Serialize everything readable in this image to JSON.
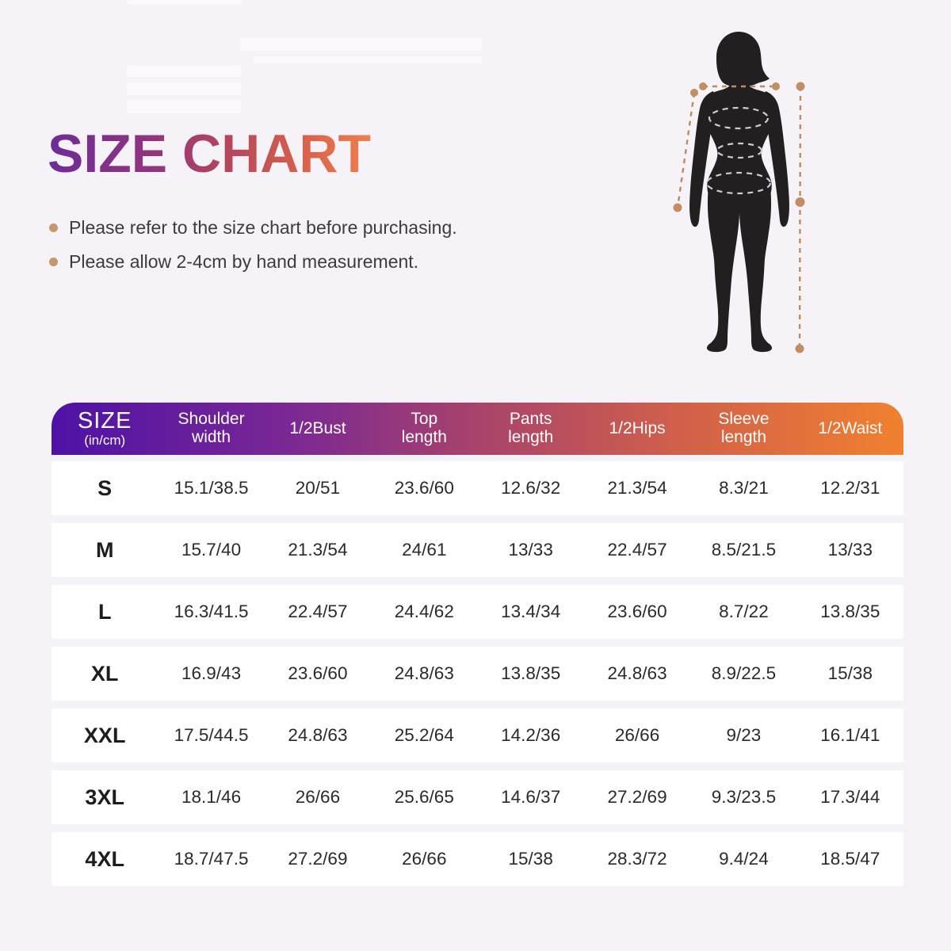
{
  "title": "SIZE CHART",
  "notes": [
    "Please refer to the size chart before purchasing.",
    "Please allow 2-4cm by hand measurement."
  ],
  "figure": {
    "description": "black female body silhouette with dashed tan measurement guide lines and dashed ellipses at bust, waist and hips"
  },
  "table": {
    "columns": [
      {
        "lines": [
          "SIZE"
        ],
        "sub": "(in/cm)"
      },
      {
        "lines": [
          "Shoulder",
          "width"
        ]
      },
      {
        "lines": [
          "1/2Bust"
        ]
      },
      {
        "lines": [
          "Top",
          "length"
        ]
      },
      {
        "lines": [
          "Pants",
          "length"
        ]
      },
      {
        "lines": [
          "1/2Hips"
        ]
      },
      {
        "lines": [
          "Sleeve",
          "length"
        ]
      },
      {
        "lines": [
          "1/2Waist"
        ]
      }
    ],
    "rows": [
      {
        "size": "S",
        "cells": [
          "15.1/38.5",
          "20/51",
          "23.6/60",
          "12.6/32",
          "21.3/54",
          "8.3/21",
          "12.2/31"
        ]
      },
      {
        "size": "M",
        "cells": [
          "15.7/40",
          "21.3/54",
          "24/61",
          "13/33",
          "22.4/57",
          "8.5/21.5",
          "13/33"
        ]
      },
      {
        "size": "L",
        "cells": [
          "16.3/41.5",
          "22.4/57",
          "24.4/62",
          "13.4/34",
          "23.6/60",
          "8.7/22",
          "13.8/35"
        ]
      },
      {
        "size": "XL",
        "cells": [
          "16.9/43",
          "23.6/60",
          "24.8/63",
          "13.8/35",
          "24.8/63",
          "8.9/22.5",
          "15/38"
        ]
      },
      {
        "size": "XXL",
        "cells": [
          "17.5/44.5",
          "24.8/63",
          "25.2/64",
          "14.2/36",
          "26/66",
          "9/23",
          "16.1/41"
        ]
      },
      {
        "size": "3XL",
        "cells": [
          "18.1/46",
          "26/66",
          "25.6/65",
          "14.6/37",
          "27.2/69",
          "9.3/23.5",
          "17.3/44"
        ]
      },
      {
        "size": "4XL",
        "cells": [
          "18.7/47.5",
          "27.2/69",
          "26/66",
          "15/38",
          "28.3/72",
          "9.4/24",
          "18.5/47"
        ]
      }
    ]
  },
  "colors": {
    "background": "#f5f2f8",
    "title_gradient": [
      "#6d2c97",
      "#b3465c",
      "#ee7f4e"
    ],
    "header_gradient": [
      "#4e12a6",
      "#a8436b",
      "#f0812f"
    ],
    "bullet_dot": "#c7986b",
    "row_background": "#ffffff",
    "text": "#2a2a2a",
    "silhouette": "#221f20",
    "measure_line": "#c18a5d"
  },
  "chart_data": {
    "type": "table",
    "title": "SIZE CHART",
    "unit": "in/cm",
    "columns": [
      "SIZE (in/cm)",
      "Shoulder width",
      "1/2Bust",
      "Top length",
      "Pants length",
      "1/2Hips",
      "Sleeve length",
      "1/2Waist"
    ],
    "rows": [
      [
        "S",
        "15.1/38.5",
        "20/51",
        "23.6/60",
        "12.6/32",
        "21.3/54",
        "8.3/21",
        "12.2/31"
      ],
      [
        "M",
        "15.7/40",
        "21.3/54",
        "24/61",
        "13/33",
        "22.4/57",
        "8.5/21.5",
        "13/33"
      ],
      [
        "L",
        "16.3/41.5",
        "22.4/57",
        "24.4/62",
        "13.4/34",
        "23.6/60",
        "8.7/22",
        "13.8/35"
      ],
      [
        "XL",
        "16.9/43",
        "23.6/60",
        "24.8/63",
        "13.8/35",
        "24.8/63",
        "8.9/22.5",
        "15/38"
      ],
      [
        "XXL",
        "17.5/44.5",
        "24.8/63",
        "25.2/64",
        "14.2/36",
        "26/66",
        "9/23",
        "16.1/41"
      ],
      [
        "3XL",
        "18.1/46",
        "26/66",
        "25.6/65",
        "14.6/37",
        "27.2/69",
        "9.3/23.5",
        "17.3/44"
      ],
      [
        "4XL",
        "18.7/47.5",
        "27.2/69",
        "26/66",
        "15/38",
        "28.3/72",
        "9.4/24",
        "18.5/47"
      ]
    ]
  }
}
